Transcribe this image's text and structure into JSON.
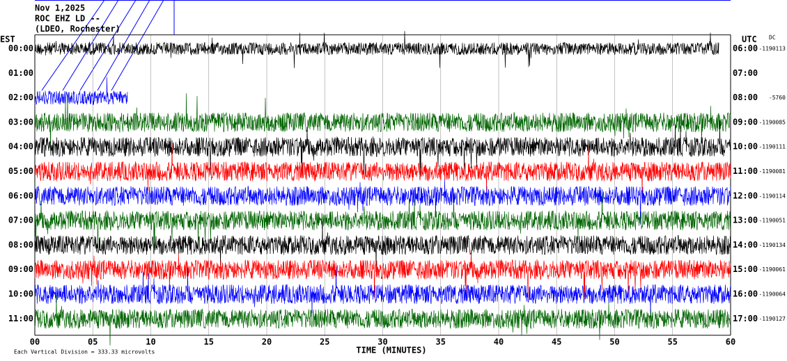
{
  "chart_data": {
    "type": "helicorder",
    "title_lines": [
      "Nov 1,2025",
      "ROC EHZ LD --",
      "(LDEO, Rochester)"
    ],
    "left_axis_label": "EST",
    "right_axis_label": "UTC",
    "dc_label": "DC",
    "xlabel": "TIME (MINUTES)",
    "footer": "Each Vertical Division = 333.33 microvolts",
    "xlim": [
      0,
      60
    ],
    "xticks": [
      {
        "value": 0,
        "label": "00"
      },
      {
        "value": 5,
        "label": "05"
      },
      {
        "value": 10,
        "label": "10"
      },
      15,
      20,
      25,
      30,
      35,
      40,
      45,
      50,
      55,
      60
    ],
    "rows": [
      {
        "est": "00:00",
        "utc": "06:00",
        "dc": -1190113,
        "color": "#000000",
        "trace_end": 59
      },
      {
        "est": "01:00",
        "utc": "07:00",
        "dc": null,
        "color": null,
        "trace_end": null
      },
      {
        "est": "02:00",
        "utc": "08:00",
        "dc": -5760,
        "color": "#0000ff",
        "trace_end": 8
      },
      {
        "est": "03:00",
        "utc": "09:00",
        "dc": -1190085,
        "color": "#006400",
        "trace_end": 60
      },
      {
        "est": "04:00",
        "utc": "10:00",
        "dc": -1190111,
        "color": "#000000",
        "trace_end": 60
      },
      {
        "est": "05:00",
        "utc": "11:00",
        "dc": -1190081,
        "color": "#ff0000",
        "trace_end": 60
      },
      {
        "est": "06:00",
        "utc": "12:00",
        "dc": -1190114,
        "color": "#0000ff",
        "trace_end": 60
      },
      {
        "est": "07:00",
        "utc": "13:00",
        "dc": -1190051,
        "color": "#006400",
        "trace_end": 60
      },
      {
        "est": "08:00",
        "utc": "14:00",
        "dc": -1190134,
        "color": "#000000",
        "trace_end": 60
      },
      {
        "est": "09:00",
        "utc": "15:00",
        "dc": -1190061,
        "color": "#ff0000",
        "trace_end": 60
      },
      {
        "est": "10:00",
        "utc": "16:00",
        "dc": -1190064,
        "color": "#0000ff",
        "trace_end": 60
      },
      {
        "est": "11:00",
        "utc": "17:00",
        "dc": -1190127,
        "color": "#006400",
        "trace_end": 60
      }
    ]
  }
}
